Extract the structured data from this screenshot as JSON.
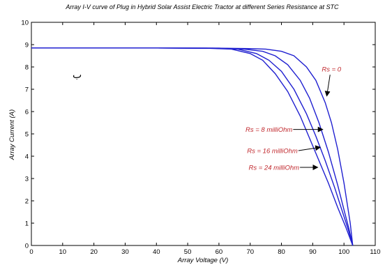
{
  "chart_data": {
    "type": "line",
    "title": "Array I-V curve of Plug in Hybrid Solar Assist Electric Tractor at different Series Resistance at STC",
    "xlabel": "Array Voltage (V)",
    "ylabel": "Array Current (A)",
    "xlim": [
      0,
      110
    ],
    "ylim": [
      0,
      10
    ],
    "x_ticks": [
      "0",
      "10",
      "20",
      "30",
      "40",
      "50",
      "60",
      "70",
      "80",
      "90",
      "100",
      "110"
    ],
    "y_ticks": [
      "0",
      "1",
      "2",
      "3",
      "4",
      "5",
      "6",
      "7",
      "8",
      "9",
      "10"
    ],
    "grid": false,
    "line_color": "#1f1fd0",
    "annotation_color": "#c0282d",
    "series": [
      {
        "name": "Rs = 0",
        "x": [
          0,
          20,
          40,
          60,
          70,
          75,
          80,
          84,
          88,
          91,
          94,
          96,
          98,
          100,
          101,
          102,
          102.8
        ],
        "y": [
          8.85,
          8.85,
          8.85,
          8.84,
          8.82,
          8.8,
          8.7,
          8.5,
          8.0,
          7.4,
          6.4,
          5.5,
          4.3,
          2.8,
          1.9,
          1.0,
          0.0
        ]
      },
      {
        "name": "Rs = 8 milliOhm",
        "x": [
          0,
          20,
          40,
          60,
          68,
          74,
          78,
          82,
          86,
          89,
          92,
          95,
          98,
          100,
          101.5,
          102.8
        ],
        "y": [
          8.85,
          8.85,
          8.85,
          8.84,
          8.8,
          8.7,
          8.5,
          8.1,
          7.4,
          6.6,
          5.5,
          4.2,
          2.7,
          1.6,
          0.8,
          0.0
        ]
      },
      {
        "name": "Rs = 16 milliOhm",
        "x": [
          0,
          20,
          40,
          58,
          66,
          72,
          76,
          80,
          84,
          88,
          91,
          94,
          97,
          100,
          101.5,
          102.8
        ],
        "y": [
          8.85,
          8.85,
          8.85,
          8.84,
          8.8,
          8.6,
          8.3,
          7.8,
          7.0,
          5.9,
          4.9,
          3.8,
          2.6,
          1.3,
          0.65,
          0.0
        ]
      },
      {
        "name": "Rs = 24 milliOhm",
        "x": [
          0,
          20,
          40,
          56,
          64,
          70,
          74,
          78,
          82,
          86,
          89,
          92,
          95,
          98,
          100.5,
          102.8
        ],
        "y": [
          8.85,
          8.85,
          8.85,
          8.84,
          8.8,
          8.6,
          8.3,
          7.7,
          6.9,
          5.8,
          4.8,
          3.8,
          2.8,
          1.7,
          0.85,
          0.0
        ]
      }
    ],
    "annotations": [
      {
        "text": "Rs = 0",
        "x": 96,
        "y": 7.9,
        "arrow_to": [
          94.5,
          6.7
        ]
      },
      {
        "text": "Rs = 8 milliOhm",
        "x": 68.5,
        "y": 5.2,
        "arrow_to": [
          93.2,
          5.2
        ]
      },
      {
        "text": "Rs = 16 milliOhm",
        "x": 69,
        "y": 4.25,
        "arrow_to": [
          92.4,
          4.4
        ]
      },
      {
        "text": "Rs = 24 milliOhm",
        "x": 69.5,
        "y": 3.5,
        "arrow_to": [
          91.6,
          3.5
        ]
      }
    ],
    "stray_glyph": "ب"
  }
}
